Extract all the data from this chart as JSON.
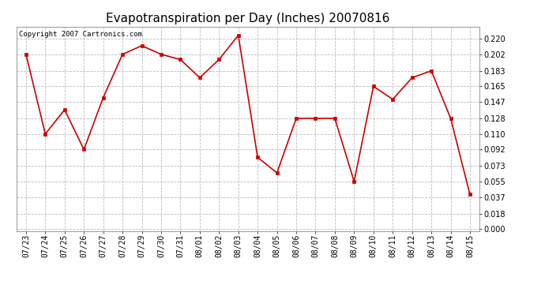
{
  "title": "Evapotranspiration per Day (Inches) 20070816",
  "copyright_text": "Copyright 2007 Cartronics.com",
  "x_labels": [
    "07/23",
    "07/24",
    "07/25",
    "07/26",
    "07/27",
    "07/28",
    "07/29",
    "07/30",
    "07/31",
    "08/01",
    "08/02",
    "08/03",
    "08/04",
    "08/05",
    "08/06",
    "08/07",
    "08/08",
    "08/09",
    "08/10",
    "08/11",
    "08/12",
    "08/13",
    "08/14",
    "08/15"
  ],
  "y_values": [
    0.202,
    0.11,
    0.138,
    0.092,
    0.152,
    0.202,
    0.212,
    0.202,
    0.196,
    0.175,
    0.196,
    0.224,
    0.083,
    0.065,
    0.128,
    0.128,
    0.128,
    0.055,
    0.165,
    0.15,
    0.175,
    0.183,
    0.128,
    0.04
  ],
  "line_color": "#cc0000",
  "marker": "s",
  "marker_size": 2.5,
  "y_ticks": [
    0.0,
    0.018,
    0.037,
    0.055,
    0.073,
    0.092,
    0.11,
    0.128,
    0.147,
    0.165,
    0.183,
    0.202,
    0.22
  ],
  "ylim": [
    -0.002,
    0.234
  ],
  "background_color": "#ffffff",
  "grid_color": "#bbbbbb",
  "title_fontsize": 11,
  "copyright_fontsize": 6.5,
  "tick_fontsize": 7
}
